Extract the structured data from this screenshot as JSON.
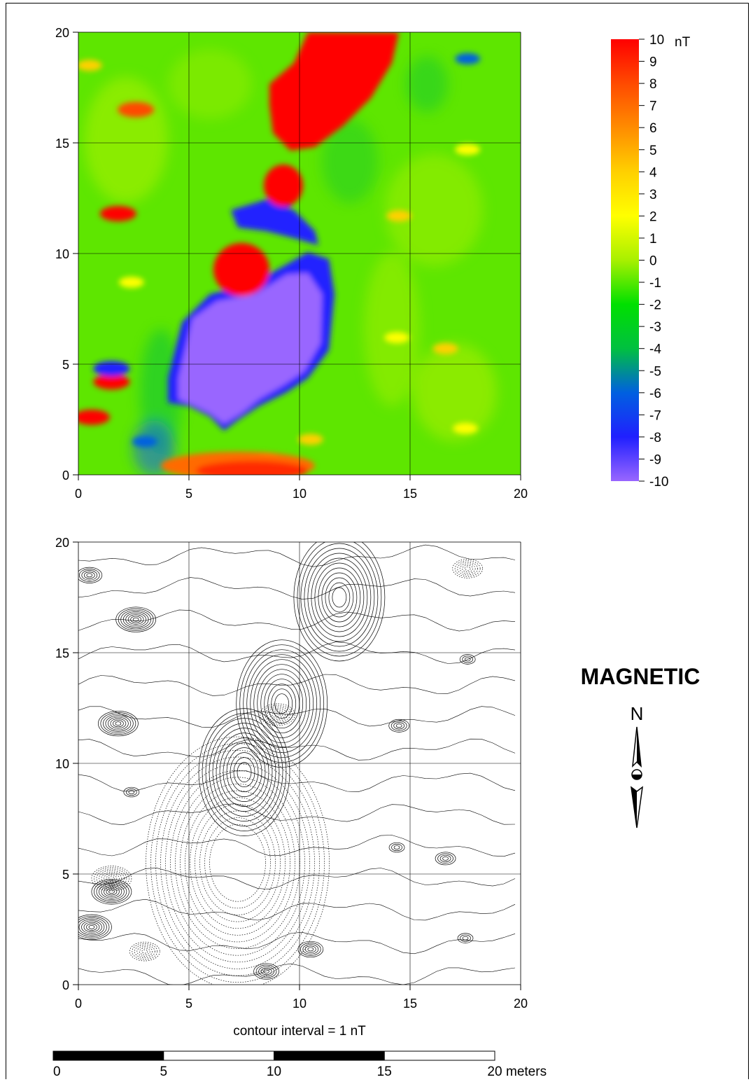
{
  "chart_data": [
    {
      "type": "heatmap",
      "title": "",
      "xlabel": "",
      "ylabel": "",
      "xlim": [
        0,
        20
      ],
      "ylim": [
        0,
        20
      ],
      "xticks": [
        "0",
        "5",
        "10",
        "15",
        "20"
      ],
      "yticks": [
        "0",
        "5",
        "10",
        "15",
        "20"
      ],
      "grid": true,
      "colorbar": {
        "unit": "nT",
        "range": [
          -10,
          10
        ],
        "ticks": [
          "10",
          "9",
          "8",
          "7",
          "6",
          "5",
          "4",
          "3",
          "2",
          "1",
          "0",
          "-1",
          "-2",
          "-3",
          "-4",
          "-5",
          "-6",
          "-7",
          "-8",
          "-9",
          "-10"
        ],
        "colors": [
          "#ff0000",
          "#ff4a00",
          "#ff8c00",
          "#ffd000",
          "#ffff00",
          "#a8f000",
          "#00e000",
          "#00c040",
          "#0060e0",
          "#2020ff",
          "#9966ff"
        ]
      },
      "anomalies": [
        {
          "x": 7.2,
          "y": 5.5,
          "value": -10
        },
        {
          "x": 7.5,
          "y": 9.6,
          "value": 10
        },
        {
          "x": 9.2,
          "y": 12.7,
          "value": 10
        },
        {
          "x": 11.8,
          "y": 17.5,
          "value": 10
        },
        {
          "x": 1.8,
          "y": 11.8,
          "value": 10
        },
        {
          "x": 2.6,
          "y": 16.5,
          "value": 9
        },
        {
          "x": 1.5,
          "y": 4.2,
          "value": 10
        },
        {
          "x": 0.6,
          "y": 2.6,
          "value": 10
        },
        {
          "x": 1.5,
          "y": 4.8,
          "value": -8
        },
        {
          "x": 8.5,
          "y": 0.6,
          "value": 5
        },
        {
          "x": 10.5,
          "y": 1.6,
          "value": 5
        },
        {
          "x": 9.0,
          "y": 12.2,
          "value": -7
        },
        {
          "x": 17.6,
          "y": 18.8,
          "value": -6
        },
        {
          "x": 3.0,
          "y": 1.5,
          "value": -6
        },
        {
          "x": 14.5,
          "y": 11.7,
          "value": 4
        },
        {
          "x": 16.6,
          "y": 5.7,
          "value": 4
        },
        {
          "x": 14.4,
          "y": 6.2,
          "value": 3
        },
        {
          "x": 17.6,
          "y": 14.7,
          "value": 3
        },
        {
          "x": 2.4,
          "y": 8.7,
          "value": 3
        },
        {
          "x": 0.5,
          "y": 18.5,
          "value": 5
        },
        {
          "x": 17.5,
          "y": 2.1,
          "value": 3
        }
      ]
    },
    {
      "type": "contour",
      "title": "",
      "xlabel": "",
      "ylabel": "",
      "xlim": [
        0,
        20
      ],
      "ylim": [
        0,
        20
      ],
      "xticks": [
        "0",
        "5",
        "10",
        "15",
        "20"
      ],
      "yticks": [
        "0",
        "5",
        "10",
        "15",
        "20"
      ],
      "grid": true,
      "caption": "contour interval = 1 nT",
      "contour_interval_nT": 1
    }
  ],
  "scale_bar": {
    "labels": [
      "0",
      "5",
      "10",
      "15",
      "20"
    ],
    "unit": "meters",
    "segments": [
      "black",
      "white",
      "black",
      "white"
    ]
  },
  "legend_block": {
    "title": "MAGNETIC",
    "north_label": "N"
  }
}
